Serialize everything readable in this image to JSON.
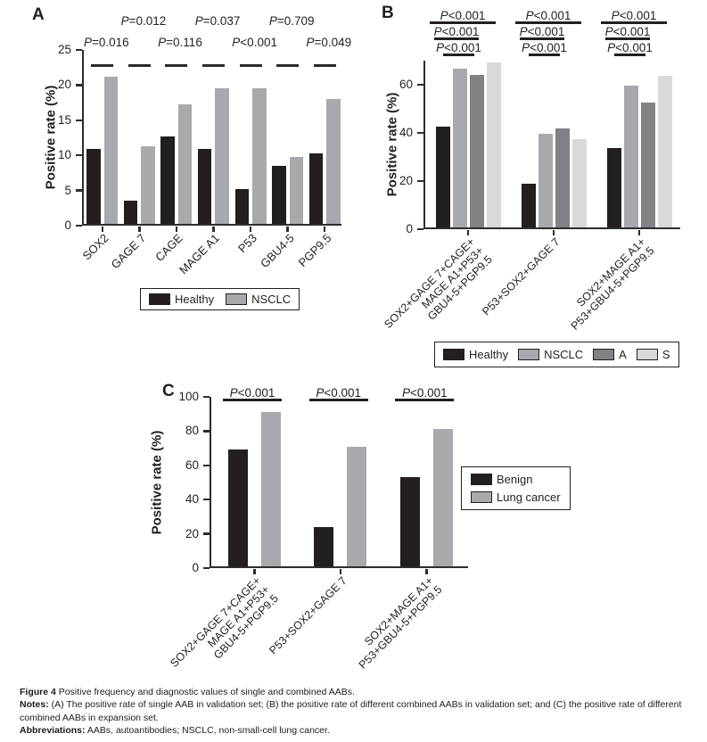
{
  "caption": {
    "figure_label": "Figure 4",
    "figure_text": "Positive frequency and diagnostic values of single and combined AABs.",
    "notes_label": "Notes:",
    "notes_text": "(A) The positive rate of single AAB in validation set; (B) the positive rate of different combined AABs in validation set; and (C) the positive rate of different combined AABs in expansion set.",
    "abbreviations_label": "Abbreviations:",
    "abbreviations_text": "AABs, autoantibodies; NSCLC, non-small-cell lung cancer."
  },
  "colors": {
    "healthy_black": "#231f20",
    "nsclc_gray": "#a7a9ac",
    "a_dark_gray": "#808285",
    "s_light_gray": "#d9d9d9",
    "axis": "#2d2d2d"
  },
  "chart_data": [
    {
      "panel": "A",
      "type": "bar",
      "ylabel": "Positive rate (%)",
      "ylim": [
        0,
        25
      ],
      "ymax": 25,
      "yticks": [
        0,
        5,
        10,
        15,
        20,
        25
      ],
      "categories": [
        "SOX2",
        "GAGE 7",
        "CAGE",
        "MAGE A1",
        "P53",
        "GBU4-5",
        "PGP9.5"
      ],
      "series": [
        {
          "name": "Healthy",
          "color": "#231f20",
          "values": [
            10.7,
            3.3,
            12.4,
            10.7,
            5.0,
            8.3,
            10.0
          ]
        },
        {
          "name": "NSCLC",
          "color": "#a7a9ac",
          "values": [
            21.0,
            11.0,
            17.0,
            19.3,
            19.3,
            9.5,
            17.8
          ]
        }
      ],
      "pvalues": [
        {
          "text": "P=0.016",
          "row": 2
        },
        {
          "text": "P=0.012",
          "row": 1
        },
        {
          "text": "P=0.116",
          "row": 2
        },
        {
          "text": "P=0.037",
          "row": 1
        },
        {
          "text": "P<0.001",
          "row": 2
        },
        {
          "text": "P=0.709",
          "row": 1
        },
        {
          "text": "P=0.049",
          "row": 2
        }
      ],
      "dash_value": 23,
      "legend": {
        "position": "bottom",
        "items": [
          "Healthy",
          "NSCLC"
        ]
      }
    },
    {
      "panel": "B",
      "type": "bar",
      "ylabel": "Positive rate (%)",
      "ylim": [
        0,
        70
      ],
      "ymax": 70,
      "yticks": [
        0,
        20,
        40,
        60
      ],
      "categories": [
        [
          "SOX2+GAGE 7+CAGE+",
          "MAGE A1+P53+",
          "GBU4-5+PGP9.5"
        ],
        [
          "P53+SOX2+GAGE 7"
        ],
        [
          "SOX2+MAGE A1+",
          "P53+GBU4-5+PGP9.5"
        ]
      ],
      "series": [
        {
          "name": "Healthy",
          "color": "#231f20",
          "values": [
            42,
            18,
            33
          ]
        },
        {
          "name": "NSCLC",
          "color": "#a7a9ac",
          "values": [
            66,
            39,
            59
          ]
        },
        {
          "name": "A",
          "color": "#808285",
          "values": [
            63.5,
            41,
            52
          ]
        },
        {
          "name": "S",
          "color": "#d9d9d9",
          "values": [
            68.5,
            36.5,
            63
          ]
        }
      ],
      "pvalue_stacks": [
        [
          "P<0.001",
          "P<0.001",
          "P<0.001"
        ],
        [
          "P<0.001",
          "P<0.001",
          "P<0.001"
        ],
        [
          "P<0.001",
          "P<0.001",
          "P<0.001"
        ]
      ],
      "legend": {
        "position": "bottom",
        "items": [
          "Healthy",
          "NSCLC",
          "A",
          "S"
        ]
      }
    },
    {
      "panel": "C",
      "type": "bar",
      "ylabel": "Positive rate (%)",
      "ylim": [
        0,
        100
      ],
      "ymax": 100,
      "yticks": [
        0,
        20,
        40,
        60,
        80,
        100
      ],
      "categories": [
        [
          "SOX2+GAGE 7+CAGE+",
          "MAGE A1+P53+",
          "GBU4-5+PGP9.5"
        ],
        [
          "P53+SOX2+GAGE 7"
        ],
        [
          "SOX2+MAGE A1+",
          "P53+GBU4-5+PGP9.5"
        ]
      ],
      "series": [
        {
          "name": "Benign",
          "color": "#231f20",
          "values": [
            68,
            23,
            52
          ]
        },
        {
          "name": "Lung cancer",
          "color": "#a7a9ac",
          "values": [
            90,
            70,
            80
          ]
        }
      ],
      "pvalue_stacks": [
        [
          "P<0.001"
        ],
        [
          "P<0.001"
        ],
        [
          "P<0.001"
        ]
      ],
      "legend": {
        "position": "right",
        "items": [
          "Benign",
          "Lung cancer"
        ]
      }
    }
  ]
}
